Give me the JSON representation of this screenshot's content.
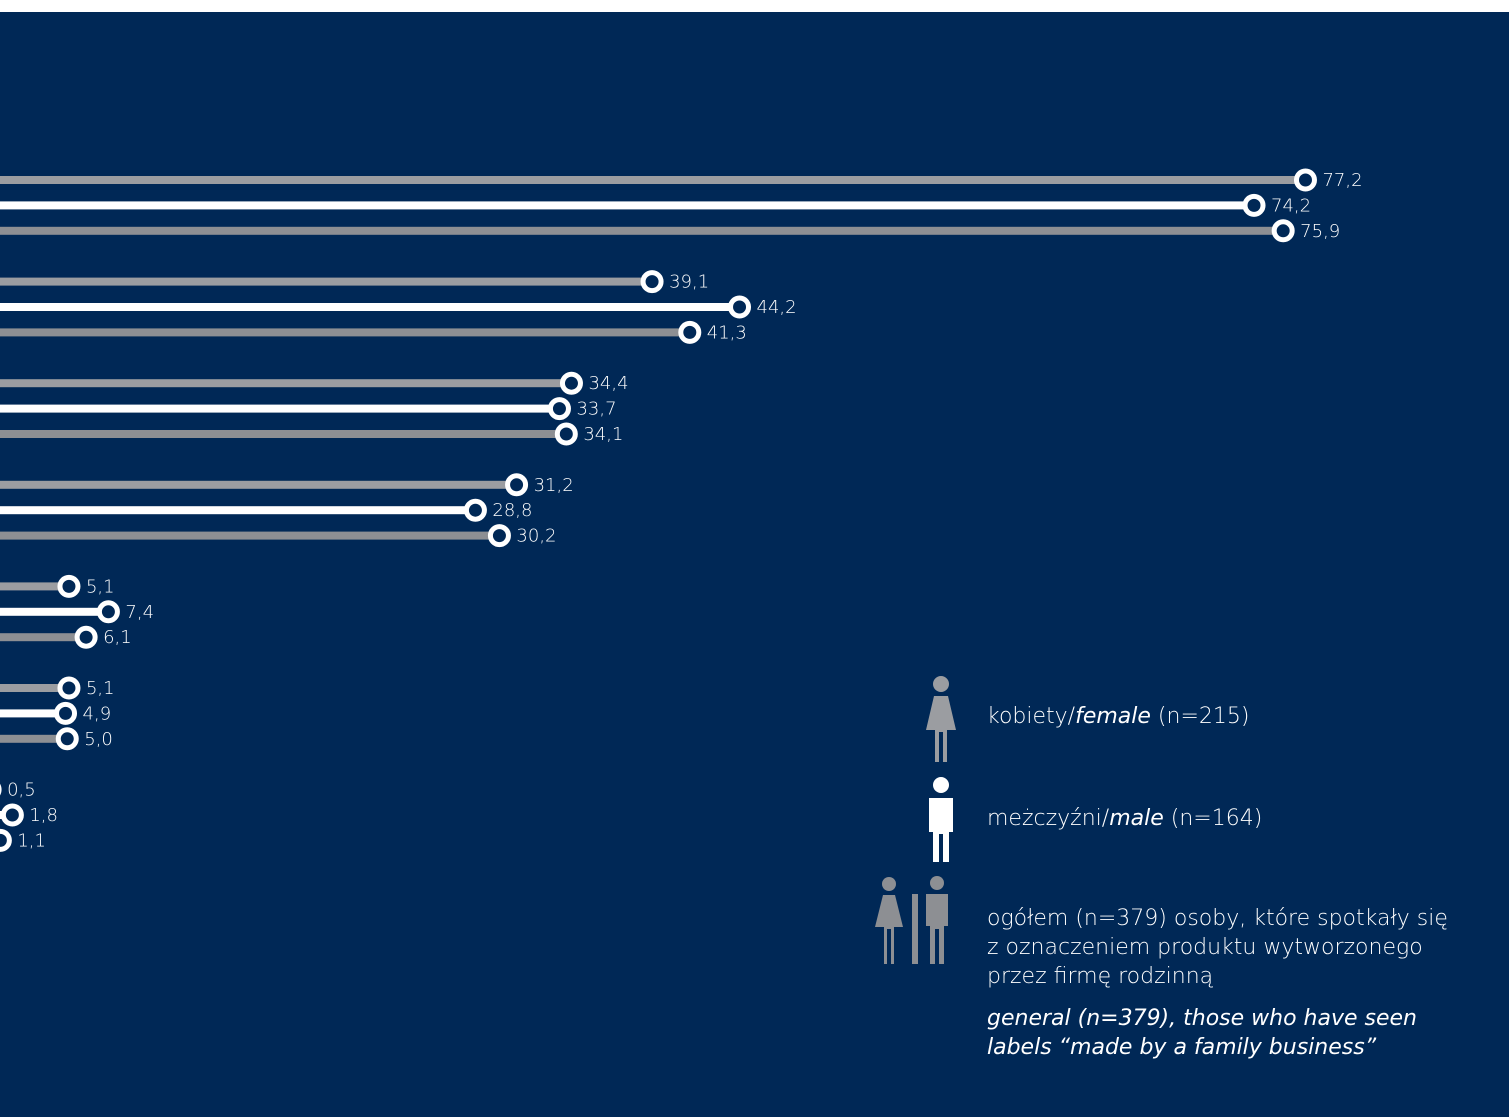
{
  "chart_data": {
    "type": "bar",
    "orientation": "horizontal",
    "style": "lollipop",
    "groups": 7,
    "series": [
      {
        "key": "female",
        "color": "#9b9da1",
        "values": [
          77.2,
          39.1,
          34.4,
          31.2,
          5.1,
          5.1,
          0.5
        ]
      },
      {
        "key": "male",
        "color": "#ffffff",
        "values": [
          74.2,
          44.2,
          33.7,
          28.8,
          7.4,
          4.9,
          1.8
        ]
      },
      {
        "key": "general",
        "color": "#8d8f93",
        "values": [
          75.9,
          41.3,
          34.1,
          30.2,
          6.1,
          5.0,
          1.1
        ]
      }
    ],
    "labels": [
      [
        "77,2",
        "74,2",
        "75,9"
      ],
      [
        "39,1",
        "44,2",
        "41,3"
      ],
      [
        "34,4",
        "33,7",
        "34,1"
      ],
      [
        "31,2",
        "28,8",
        "30,2"
      ],
      [
        "5,1",
        "7,4",
        "6,1"
      ],
      [
        "5,1",
        "4,9",
        "5,0"
      ],
      [
        "0,5",
        "1,8",
        "1,1"
      ]
    ]
  },
  "legend": {
    "female": {
      "pre": "kobiety/",
      "italic": "female",
      "post": " (n=215)"
    },
    "male": {
      "pre": "meżczyźni/",
      "italic": "male",
      "post": " (n=164)"
    },
    "general": {
      "line1": "ogółem (n=379) osoby, które spotkały się",
      "line2": "z oznaczeniem produktu wytworzonego",
      "line3": "przez firmę rodzinną",
      "en_line1": "general (n=379), those who have seen",
      "en_line2": "labels “made by a family business”"
    }
  },
  "colors": {
    "background": "#002856",
    "top_band": "#ffffff",
    "top_tab": "#cfd3d9",
    "circle_fill": "#002856",
    "female_icon": "#9b9da1",
    "male_icon": "#ffffff",
    "general_icon": "#8d8f93"
  },
  "icons": {
    "female": "woman-icon",
    "male": "man-icon",
    "general": "woman-and-man-icon"
  }
}
